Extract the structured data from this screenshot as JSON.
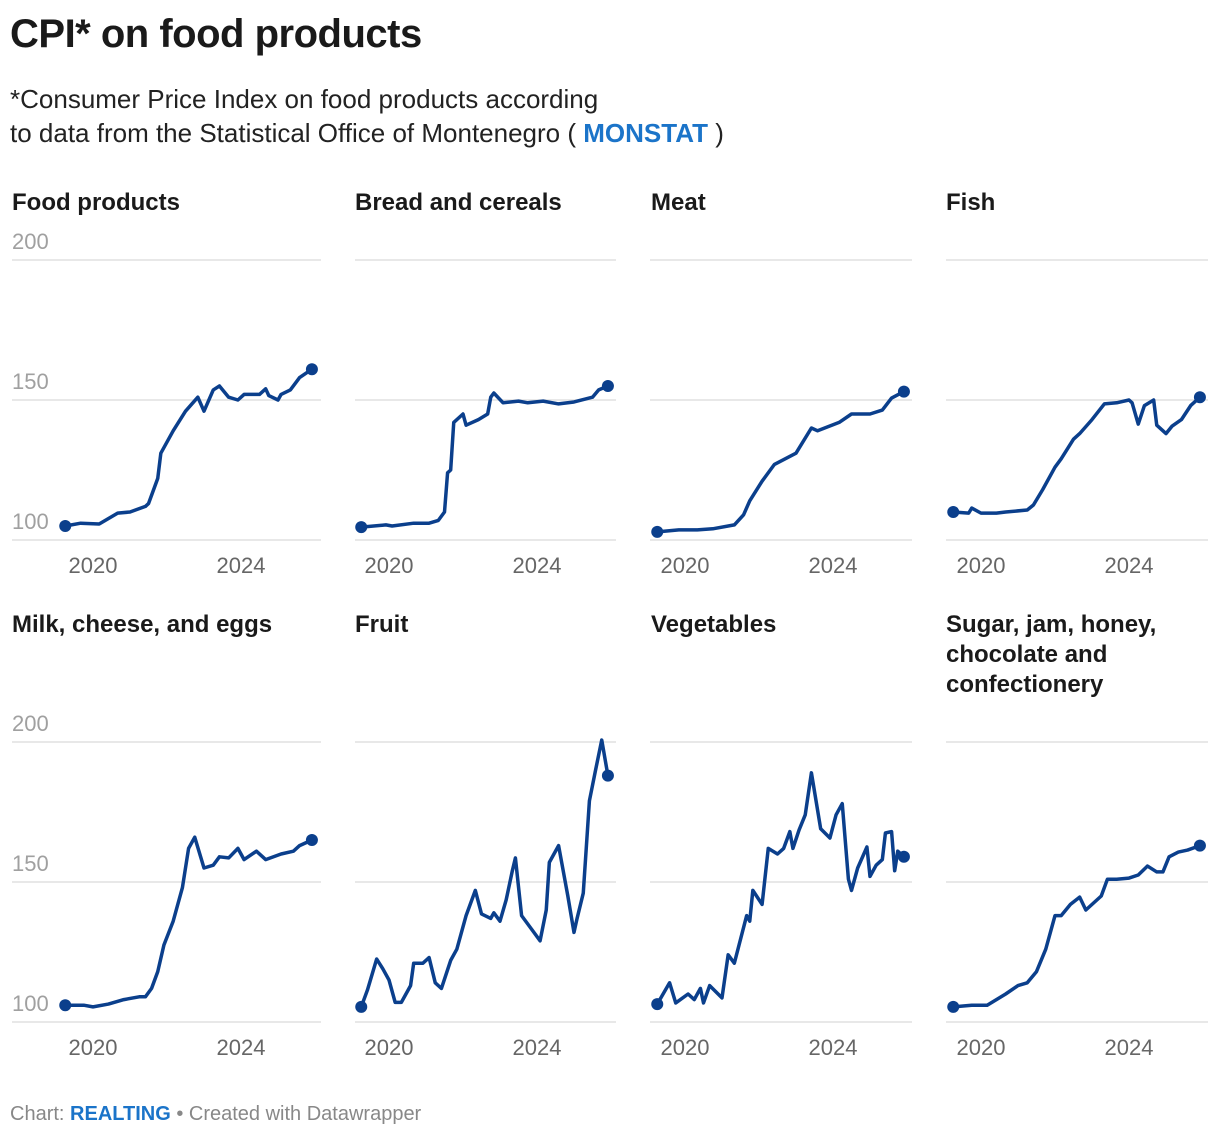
{
  "header": {
    "title": "CPI* on food products",
    "subtitle_line1": "*Consumer Price Index on food products according",
    "subtitle_line2": "to data from the Statistical Office of Montenegro (",
    "subtitle_link": "MONSTAT",
    "subtitle_end": ")"
  },
  "footer": {
    "prefix": "Chart:",
    "brand": "REALTING",
    "suffix": "• Created with Datawrapper"
  },
  "colors": {
    "line": "#0b3f8c",
    "grid": "#e1e1e1",
    "link": "#1b74c9"
  },
  "chart_data": [
    {
      "type": "line",
      "title": "Food products",
      "ylim": [
        100,
        200
      ],
      "yticks": [
        "100",
        "150",
        "200"
      ],
      "xticks": [
        "2020",
        "2024"
      ],
      "grid": true,
      "x": [
        "2019-04",
        "2019-09",
        "2020-03",
        "2020-09",
        "2021-01",
        "2021-06",
        "2021-07",
        "2021-10",
        "2021-11",
        "2022-03",
        "2022-07",
        "2022-11",
        "2023-01",
        "2023-04",
        "2023-06",
        "2023-09",
        "2023-12",
        "2024-02",
        "2024-07",
        "2024-09",
        "2024-10",
        "2025-01",
        "2025-02",
        "2025-05",
        "2025-08",
        "2025-12"
      ],
      "y": [
        105,
        106,
        105.7,
        109.6,
        110,
        112,
        113,
        122,
        131,
        139,
        146,
        151,
        146,
        153.6,
        155,
        151,
        150,
        152,
        152,
        154,
        151.6,
        150,
        152,
        153.6,
        158,
        161
      ]
    },
    {
      "type": "line",
      "title": "Bread and cereals",
      "ylim": [
        100,
        200
      ],
      "yticks": [
        "100",
        "150",
        "200"
      ],
      "xticks": [
        "2020",
        "2024"
      ],
      "grid": true,
      "x": [
        "2019-04",
        "2019-12",
        "2020-02",
        "2020-09",
        "2021-02",
        "2021-05",
        "2021-07",
        "2021-08",
        "2021-09",
        "2021-10",
        "2022-01",
        "2022-02",
        "2022-06",
        "2022-09",
        "2022-10",
        "2022-11",
        "2023-02",
        "2023-07",
        "2023-10",
        "2024-03",
        "2024-08",
        "2025-01",
        "2025-07",
        "2025-09",
        "2025-12"
      ],
      "y": [
        104.6,
        105.4,
        105,
        106,
        106,
        107,
        110,
        124,
        125,
        142,
        145,
        141,
        143,
        145,
        151,
        152.5,
        149,
        149.6,
        149,
        149.6,
        148.6,
        149.3,
        151,
        153.6,
        155
      ]
    },
    {
      "type": "line",
      "title": "Meat",
      "ylim": [
        100,
        200
      ],
      "yticks": [
        "100",
        "150",
        "200"
      ],
      "xticks": [
        "2020",
        "2024"
      ],
      "grid": true,
      "x": [
        "2019-04",
        "2019-11",
        "2020-05",
        "2020-10",
        "2021-05",
        "2021-08",
        "2021-10",
        "2022-02",
        "2022-06",
        "2023-01",
        "2023-06",
        "2023-08",
        "2024-03",
        "2024-07",
        "2025-01",
        "2025-05",
        "2025-08",
        "2025-12"
      ],
      "y": [
        102.9,
        103.6,
        103.6,
        104,
        105.4,
        109,
        114,
        121,
        127,
        131,
        140,
        139,
        142,
        145,
        145,
        146.4,
        150.7,
        153
      ]
    },
    {
      "type": "line",
      "title": "Fish",
      "ylim": [
        100,
        200
      ],
      "yticks": [
        "100",
        "150",
        "200"
      ],
      "xticks": [
        "2020",
        "2024"
      ],
      "grid": true,
      "x": [
        "2019-04",
        "2019-09",
        "2019-10",
        "2020-01",
        "2020-06",
        "2020-09",
        "2021-04",
        "2021-06",
        "2021-09",
        "2022-01",
        "2022-03",
        "2022-07",
        "2022-09",
        "2023-01",
        "2023-05",
        "2023-09",
        "2024-01",
        "2024-02",
        "2024-04",
        "2024-06",
        "2024-09",
        "2024-10",
        "2025-01",
        "2025-03",
        "2025-06",
        "2025-09",
        "2025-12"
      ],
      "y": [
        110,
        109.6,
        111.4,
        109.6,
        109.6,
        110,
        110.7,
        112.5,
        118,
        126,
        129,
        136,
        138,
        143,
        148.6,
        149,
        150,
        149,
        141.4,
        148,
        150,
        141,
        138,
        140.7,
        143,
        148,
        151
      ]
    },
    {
      "type": "line",
      "title": "Milk, cheese, and eggs",
      "ylim": [
        100,
        200
      ],
      "yticks": [
        "100",
        "150",
        "200"
      ],
      "xticks": [
        "2020",
        "2024"
      ],
      "grid": true,
      "x": [
        "2019-04",
        "2019-10",
        "2020-01",
        "2020-06",
        "2020-11",
        "2021-04",
        "2021-06",
        "2021-08",
        "2021-10",
        "2021-12",
        "2022-03",
        "2022-06",
        "2022-08",
        "2022-10",
        "2023-01",
        "2023-04",
        "2023-06",
        "2023-09",
        "2023-12",
        "2024-02",
        "2024-06",
        "2024-09",
        "2025-02",
        "2025-06",
        "2025-08",
        "2025-12"
      ],
      "y": [
        106,
        106,
        105.4,
        106.4,
        108,
        109,
        109,
        112,
        118,
        127.5,
        136,
        148,
        162,
        166,
        155,
        156,
        159,
        158.6,
        162,
        158,
        161,
        158,
        160,
        161,
        163,
        165
      ]
    },
    {
      "type": "line",
      "title": "Fruit",
      "ylim": [
        100,
        200
      ],
      "yticks": [
        "100",
        "150",
        "200"
      ],
      "xticks": [
        "2020",
        "2024"
      ],
      "grid": true,
      "x": [
        "2019-04",
        "2019-06",
        "2019-09",
        "2019-11",
        "2020-01",
        "2020-03",
        "2020-05",
        "2020-08",
        "2020-09",
        "2020-12",
        "2021-02",
        "2021-04",
        "2021-06",
        "2021-09",
        "2021-11",
        "2022-02",
        "2022-05",
        "2022-07",
        "2022-10",
        "2022-11",
        "2023-01",
        "2023-03",
        "2023-05",
        "2023-06",
        "2023-08",
        "2023-12",
        "2024-02",
        "2024-04",
        "2024-05",
        "2024-08",
        "2024-11",
        "2025-01",
        "2025-02",
        "2025-04",
        "2025-06",
        "2025-08",
        "2025-10",
        "2025-12"
      ],
      "y": [
        105.4,
        111.4,
        122.5,
        119,
        115,
        107,
        107,
        113,
        121,
        121,
        123,
        114,
        112,
        122,
        126,
        138,
        147,
        138.6,
        137,
        139,
        136,
        143.6,
        154,
        158.6,
        138,
        132,
        129,
        140,
        157,
        163,
        145,
        132,
        137,
        146,
        179,
        190,
        200.7,
        188
      ]
    },
    {
      "type": "line",
      "title": "Vegetables",
      "ylim": [
        100,
        200
      ],
      "yticks": [
        "100",
        "150",
        "200"
      ],
      "xticks": [
        "2020",
        "2024"
      ],
      "grid": true,
      "x": [
        "2019-04",
        "2019-08",
        "2019-10",
        "2020-02",
        "2020-04",
        "2020-06",
        "2020-07",
        "2020-09",
        "2021-01",
        "2021-03",
        "2021-05",
        "2021-09",
        "2021-10",
        "2021-11",
        "2022-02",
        "2022-04",
        "2022-07",
        "2022-09",
        "2022-11",
        "2022-12",
        "2023-02",
        "2023-04",
        "2023-06",
        "2023-09",
        "2023-12",
        "2024-02",
        "2024-04",
        "2024-06",
        "2024-07",
        "2024-09",
        "2024-12",
        "2025-01",
        "2025-03",
        "2025-05",
        "2025-06",
        "2025-08",
        "2025-09",
        "2025-10",
        "2025-12"
      ],
      "y": [
        106.4,
        114,
        106.8,
        110,
        108,
        112,
        106.8,
        113,
        108.6,
        124,
        121,
        138,
        136,
        147,
        142,
        162,
        160,
        162,
        168,
        162,
        168.6,
        174,
        189,
        169,
        165.7,
        174,
        178,
        151,
        147,
        155,
        162.5,
        152,
        156,
        158,
        167.5,
        168,
        154,
        161,
        159
      ]
    },
    {
      "type": "line",
      "title": "Sugar, jam, honey, chocolate and confectionery",
      "ylim": [
        100,
        200
      ],
      "yticks": [
        "100",
        "150",
        "200"
      ],
      "xticks": [
        "2020",
        "2024"
      ],
      "grid": true,
      "x": [
        "2019-04",
        "2019-10",
        "2020-03",
        "2020-06",
        "2020-09",
        "2021-01",
        "2021-04",
        "2021-07",
        "2021-10",
        "2022-01",
        "2022-03",
        "2022-06",
        "2022-09",
        "2022-11",
        "2023-04",
        "2023-06",
        "2023-09",
        "2024-01",
        "2024-04",
        "2024-07",
        "2024-10",
        "2024-12",
        "2025-02",
        "2025-05",
        "2025-08",
        "2025-12"
      ],
      "y": [
        105.4,
        106,
        106,
        108,
        110,
        113,
        114,
        118,
        126,
        138,
        138,
        142,
        144.6,
        140,
        145,
        151,
        151,
        151.4,
        152.5,
        155.7,
        153.6,
        153.6,
        159,
        160.7,
        161.4,
        163
      ]
    }
  ]
}
